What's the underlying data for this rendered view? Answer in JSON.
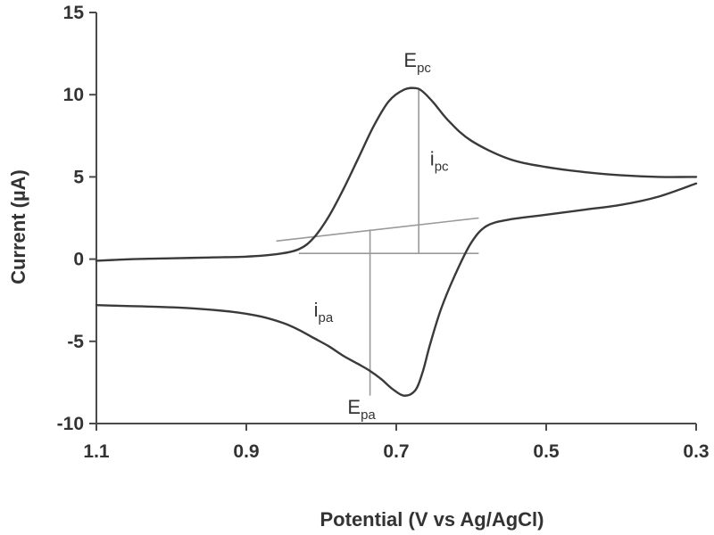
{
  "chart_data": {
    "type": "line",
    "title": "",
    "xlabel": "Potential (V vs Ag/AgCl)",
    "ylabel": "Current (µA)",
    "xlim": [
      1.1,
      0.3
    ],
    "ylim": [
      -10,
      15
    ],
    "x_reversed": true,
    "x_ticks": [
      1.1,
      0.9,
      0.7,
      0.5,
      0.3
    ],
    "y_ticks": [
      -10,
      -5,
      0,
      5,
      10,
      15
    ],
    "grid": false,
    "series": [
      {
        "x": [
          0.3,
          0.35,
          0.4,
          0.45,
          0.5,
          0.55,
          0.58,
          0.6,
          0.62,
          0.64,
          0.655,
          0.665,
          0.675,
          0.69,
          0.705,
          0.72,
          0.735,
          0.75,
          0.77,
          0.79,
          0.81,
          0.83,
          0.85,
          0.88,
          0.92,
          0.97,
          1.02,
          1.06,
          1.1
        ],
        "y": [
          4.6,
          3.8,
          3.3,
          3.0,
          2.7,
          2.4,
          2.0,
          1.0,
          -0.8,
          -3.0,
          -5.2,
          -6.9,
          -8.0,
          -8.3,
          -7.9,
          -7.3,
          -6.8,
          -6.4,
          -5.9,
          -5.3,
          -4.8,
          -4.3,
          -3.9,
          -3.5,
          -3.2,
          -3.0,
          -2.9,
          -2.85,
          -2.8
        ]
      },
      {
        "x": [
          1.1,
          1.05,
          1.0,
          0.95,
          0.9,
          0.86,
          0.83,
          0.81,
          0.79,
          0.77,
          0.75,
          0.73,
          0.71,
          0.69,
          0.675,
          0.665,
          0.65,
          0.63,
          0.6,
          0.55,
          0.5,
          0.45,
          0.4,
          0.35,
          0.3
        ],
        "y": [
          -0.1,
          0.0,
          0.05,
          0.1,
          0.15,
          0.3,
          0.6,
          1.3,
          2.6,
          4.3,
          6.2,
          8.1,
          9.6,
          10.3,
          10.4,
          10.2,
          9.5,
          8.4,
          7.2,
          6.1,
          5.6,
          5.3,
          5.1,
          5.0,
          5.0
        ]
      }
    ],
    "guides": [
      {
        "x": [
          0.86,
          0.59
        ],
        "y": [
          1.1,
          2.5
        ]
      },
      {
        "x": [
          0.83,
          0.59
        ],
        "y": [
          0.35,
          0.35
        ]
      },
      {
        "x": [
          0.67,
          0.67
        ],
        "y": [
          0.35,
          10.4
        ]
      },
      {
        "x": [
          0.735,
          0.735
        ],
        "y": [
          1.8,
          -8.3
        ]
      }
    ],
    "annotations": [
      {
        "main": "E",
        "sub": "pc",
        "x": 0.69,
        "y": 11.7
      },
      {
        "main": "i",
        "sub": "pc",
        "x": 0.655,
        "y": 5.7
      },
      {
        "main": "i",
        "sub": "pa",
        "x": 0.81,
        "y": -3.5
      },
      {
        "main": "E",
        "sub": "pa",
        "x": 0.765,
        "y": -9.4
      }
    ]
  }
}
